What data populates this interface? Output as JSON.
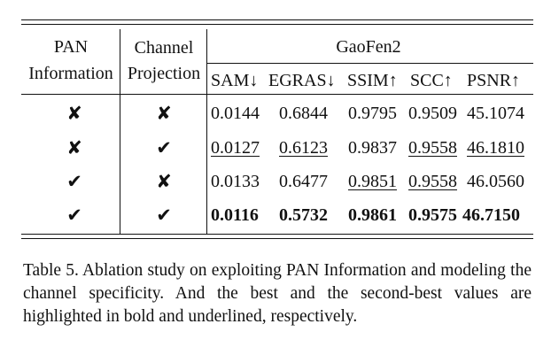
{
  "table": {
    "header": {
      "pan_line1": "PAN",
      "pan_line2": "Information",
      "proj_line1": "Channel",
      "proj_line2": "Projection",
      "dataset": "GaoFen2",
      "metrics": [
        "SAM↓",
        "EGRAS↓",
        "SSIM↑",
        "SCC↑",
        "PSNR↑"
      ]
    },
    "rows": [
      {
        "pan": "✘",
        "proj": "✘",
        "values": [
          "0.0144",
          "0.6844",
          "0.9795",
          "0.9509",
          "45.1074"
        ]
      },
      {
        "pan": "✘",
        "proj": "✔",
        "values": [
          "0.0127",
          "0.6123",
          "0.9837",
          "0.9558",
          "46.1810"
        ]
      },
      {
        "pan": "✔",
        "proj": "✘",
        "values": [
          "0.0133",
          "0.6477",
          "0.9851",
          "0.9558",
          "46.0560"
        ]
      },
      {
        "pan": "✔",
        "proj": "✔",
        "values": [
          "0.0116",
          "0.5732",
          "0.9861",
          "0.9575",
          "46.7150"
        ]
      }
    ]
  },
  "caption": "Table 5. Ablation study on exploiting PAN Information and modeling the channel specificity.  And the best and the second-best values are highlighted in bold and underlined, respectively."
}
